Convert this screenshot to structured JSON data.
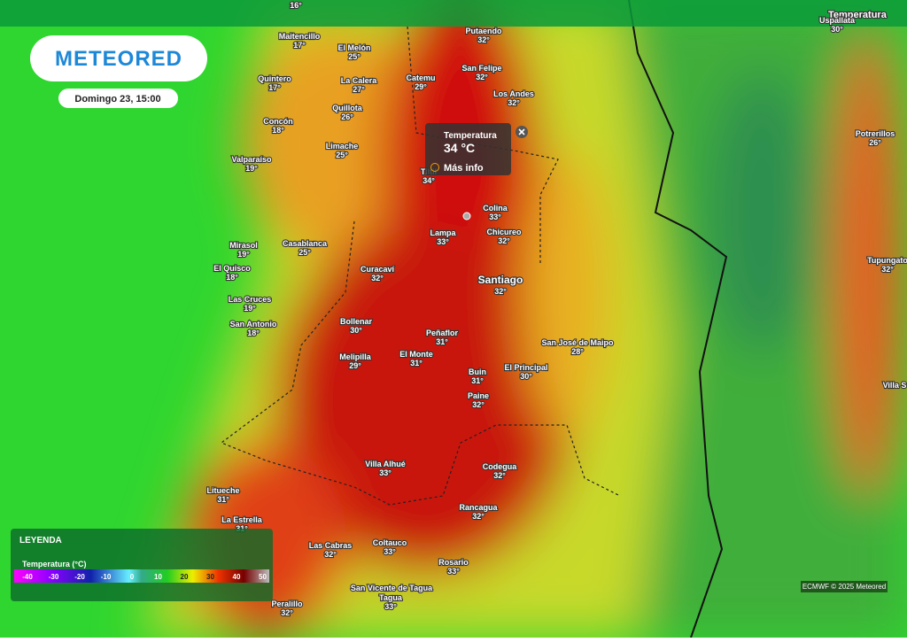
{
  "header": {
    "logo": "METEORED",
    "date": "Domingo 23, 15:00",
    "layer": "Temperatura"
  },
  "popup": {
    "title": "Temperatura",
    "value": "34 °C",
    "link": "Más info"
  },
  "cities": [
    {
      "name": "Putaendo",
      "temp": "32°"
    },
    {
      "name": "Maitencillo",
      "temp": "17°"
    },
    {
      "name": "El Melón",
      "temp": "25°"
    },
    {
      "name": "Catemu",
      "temp": "29°"
    },
    {
      "name": "San Felipe",
      "temp": "32°"
    },
    {
      "name": "Quintero",
      "temp": "17°"
    },
    {
      "name": "La Calera",
      "temp": "27°"
    },
    {
      "name": "Los Andes",
      "temp": "32°"
    },
    {
      "name": "Quillota",
      "temp": "26°"
    },
    {
      "name": "Concón",
      "temp": "18°"
    },
    {
      "name": "Limache",
      "temp": "25°"
    },
    {
      "name": "Valparaíso",
      "temp": "19°"
    },
    {
      "name": "Tiltil",
      "temp": "34°"
    },
    {
      "name": "Colina",
      "temp": "33°"
    },
    {
      "name": "Lampa",
      "temp": "33°"
    },
    {
      "name": "Chicureo",
      "temp": "32°"
    },
    {
      "name": "Mirasol",
      "temp": "19°"
    },
    {
      "name": "Casablanca",
      "temp": "25°"
    },
    {
      "name": "El Quisco",
      "temp": "18°"
    },
    {
      "name": "Curacaví",
      "temp": "32°"
    },
    {
      "name": "Santiago",
      "temp": "32°"
    },
    {
      "name": "Las Cruces",
      "temp": "19°"
    },
    {
      "name": "San Antonio",
      "temp": "18°"
    },
    {
      "name": "Bollenar",
      "temp": "30°"
    },
    {
      "name": "Peñaflor",
      "temp": "31°"
    },
    {
      "name": "San José de Maipo",
      "temp": "28°"
    },
    {
      "name": "Melipilla",
      "temp": "29°"
    },
    {
      "name": "El Monte",
      "temp": "31°"
    },
    {
      "name": "Buin",
      "temp": "31°"
    },
    {
      "name": "El Principal",
      "temp": "30°"
    },
    {
      "name": "Paine",
      "temp": "32°"
    },
    {
      "name": "Villa Alhué",
      "temp": "33°"
    },
    {
      "name": "Codegua",
      "temp": "32°"
    },
    {
      "name": "Litueche",
      "temp": "31°"
    },
    {
      "name": "Rancagua",
      "temp": "32°"
    },
    {
      "name": "La Estrella",
      "temp": "31°"
    },
    {
      "name": "Las Cabras",
      "temp": "32°"
    },
    {
      "name": "Coltauco",
      "temp": "33°"
    },
    {
      "name": "Rosario",
      "temp": "33°"
    },
    {
      "name": "Tagua",
      "temp": "33°"
    },
    {
      "name": "Peralillo",
      "temp": "32°"
    },
    {
      "name": "Potrerillos",
      "temp": "26°"
    },
    {
      "name": "Tupungato",
      "temp": "32°"
    },
    {
      "name": "Uspallata",
      "temp": "30°"
    }
  ],
  "places": [
    "San Vicente de Tagua",
    "Villa S",
    "16°"
  ],
  "legend": {
    "title": "LEYENDA",
    "subtitle": "Temperatura (°C)",
    "ticks": [
      -40,
      -30,
      -20,
      -10,
      0,
      10,
      20,
      30,
      40,
      50
    ]
  },
  "credit": "ECMWF © 2025 Meteored"
}
